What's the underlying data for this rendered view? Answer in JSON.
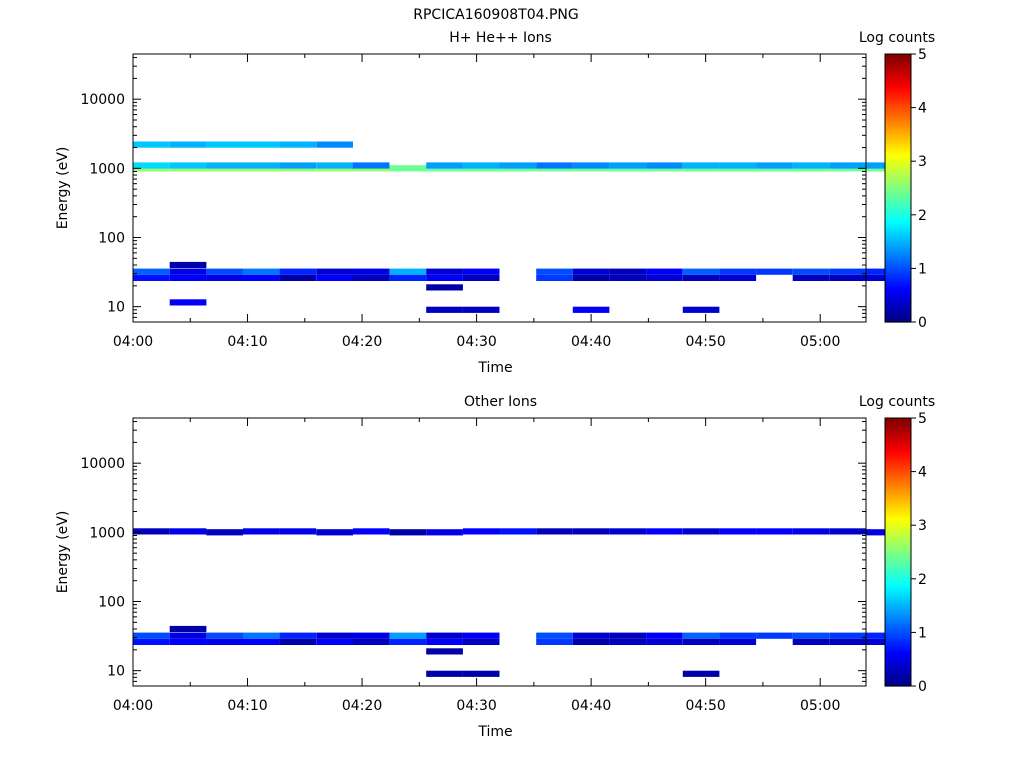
{
  "figure_title": "RPCICA160908T04.PNG",
  "colorbar": {
    "label": "Log counts",
    "ticks": [
      "0",
      "1",
      "2",
      "3",
      "4",
      "5"
    ],
    "range": [
      0,
      5
    ],
    "colormap": "jet"
  },
  "chart_data": [
    {
      "type": "heatmap",
      "title": "H+ He++ Ions",
      "xlabel": "Time",
      "ylabel": "Energy (eV)",
      "x_ticks": [
        "04:00",
        "04:10",
        "04:20",
        "04:30",
        "04:40",
        "04:50",
        "05:00"
      ],
      "y_ticks": [
        "10",
        "100",
        "1000",
        "10000"
      ],
      "y_scale": "log",
      "x_range_minutes": [
        0,
        64
      ],
      "y_range_eV": [
        6,
        45000
      ],
      "time_bin_minutes": 3.2,
      "value_unit": "log counts",
      "cells": [
        [
          0,
          1000,
          2.6
        ],
        [
          1,
          1000,
          2.6
        ],
        [
          2,
          1000,
          2.6
        ],
        [
          3,
          1000,
          2.6
        ],
        [
          4,
          1000,
          2.6
        ],
        [
          5,
          1000,
          2.6
        ],
        [
          6,
          1000,
          2.6
        ],
        [
          7,
          1000,
          2.4
        ],
        [
          8,
          1000,
          2.4
        ],
        [
          9,
          1000,
          2.4
        ],
        [
          10,
          1000,
          2.4
        ],
        [
          11,
          1000,
          2.4
        ],
        [
          12,
          1000,
          2.4
        ],
        [
          13,
          1000,
          2.4
        ],
        [
          14,
          1000,
          2.4
        ],
        [
          15,
          1000,
          2.4
        ],
        [
          16,
          1000,
          2.4
        ],
        [
          17,
          1000,
          2.4
        ],
        [
          18,
          1000,
          2.4
        ],
        [
          19,
          1000,
          2.4
        ],
        [
          20,
          1000,
          2.4
        ],
        [
          0,
          1100,
          1.7
        ],
        [
          1,
          1100,
          1.6
        ],
        [
          2,
          1100,
          1.5
        ],
        [
          3,
          1100,
          1.5
        ],
        [
          4,
          1100,
          1.4
        ],
        [
          5,
          1100,
          1.5
        ],
        [
          6,
          1100,
          1.2
        ],
        [
          8,
          1100,
          1.4
        ],
        [
          9,
          1100,
          1.5
        ],
        [
          10,
          1100,
          1.4
        ],
        [
          11,
          1100,
          1.2
        ],
        [
          12,
          1100,
          1.3
        ],
        [
          13,
          1100,
          1.4
        ],
        [
          14,
          1100,
          1.3
        ],
        [
          15,
          1100,
          1.5
        ],
        [
          16,
          1100,
          1.5
        ],
        [
          17,
          1100,
          1.4
        ],
        [
          18,
          1100,
          1.5
        ],
        [
          19,
          1100,
          1.4
        ],
        [
          20,
          1100,
          1.4
        ],
        [
          0,
          2200,
          1.6
        ],
        [
          1,
          2200,
          1.5
        ],
        [
          2,
          2200,
          1.6
        ],
        [
          3,
          2200,
          1.6
        ],
        [
          4,
          2200,
          1.5
        ],
        [
          5,
          2200,
          1.3
        ],
        [
          0,
          32,
          1.1
        ],
        [
          1,
          32,
          0.5
        ],
        [
          2,
          32,
          1.0
        ],
        [
          3,
          32,
          1.2
        ],
        [
          4,
          32,
          0.8
        ],
        [
          5,
          32,
          0.4
        ],
        [
          6,
          32,
          0.5
        ],
        [
          7,
          32,
          1.5
        ],
        [
          8,
          32,
          0.4
        ],
        [
          9,
          32,
          0.6
        ],
        [
          11,
          32,
          1.0
        ],
        [
          12,
          32,
          0.4
        ],
        [
          13,
          32,
          0.3
        ],
        [
          14,
          32,
          0.6
        ],
        [
          15,
          32,
          1.1
        ],
        [
          16,
          32,
          0.9
        ],
        [
          17,
          32,
          0.9
        ],
        [
          18,
          32,
          1.0
        ],
        [
          19,
          32,
          0.9
        ],
        [
          20,
          32,
          0.8
        ],
        [
          0,
          26,
          0.7
        ],
        [
          1,
          26,
          0.6
        ],
        [
          2,
          26,
          0.5
        ],
        [
          3,
          26,
          0.6
        ],
        [
          4,
          26,
          0.2
        ],
        [
          5,
          26,
          0.6
        ],
        [
          6,
          26,
          0.3
        ],
        [
          7,
          26,
          0.8
        ],
        [
          8,
          26,
          0.6
        ],
        [
          9,
          26,
          0.3
        ],
        [
          11,
          26,
          0.9
        ],
        [
          12,
          26,
          0.2
        ],
        [
          13,
          26,
          0.3
        ],
        [
          14,
          26,
          0.4
        ],
        [
          15,
          26,
          0.3
        ],
        [
          16,
          26,
          0.4
        ],
        [
          18,
          26,
          0.3
        ],
        [
          19,
          26,
          0.3
        ],
        [
          20,
          26,
          0.4
        ],
        [
          1,
          11.5,
          0.6
        ],
        [
          8,
          9,
          0.3
        ],
        [
          9,
          9,
          0.3
        ],
        [
          12,
          9,
          0.6
        ],
        [
          15,
          9,
          0.4
        ],
        [
          8,
          19,
          0.2
        ],
        [
          1,
          40,
          0.2
        ]
      ]
    },
    {
      "type": "heatmap",
      "title": "Other Ions",
      "xlabel": "Time",
      "ylabel": "Energy (eV)",
      "x_ticks": [
        "04:00",
        "04:10",
        "04:20",
        "04:30",
        "04:40",
        "04:50",
        "05:00"
      ],
      "y_ticks": [
        "10",
        "100",
        "1000",
        "10000"
      ],
      "y_scale": "log",
      "x_range_minutes": [
        0,
        64
      ],
      "y_range_eV": [
        6,
        45000
      ],
      "time_bin_minutes": 3.2,
      "value_unit": "log counts",
      "cells": [
        [
          0,
          1030,
          0.3
        ],
        [
          1,
          1030,
          0.5
        ],
        [
          2,
          1000,
          0.3
        ],
        [
          3,
          1030,
          0.5
        ],
        [
          4,
          1030,
          0.5
        ],
        [
          5,
          1000,
          0.4
        ],
        [
          6,
          1030,
          0.6
        ],
        [
          7,
          1000,
          0.2
        ],
        [
          8,
          1000,
          0.5
        ],
        [
          9,
          1030,
          0.6
        ],
        [
          10,
          1030,
          0.7
        ],
        [
          11,
          1030,
          0.3
        ],
        [
          12,
          1030,
          0.3
        ],
        [
          13,
          1030,
          0.4
        ],
        [
          14,
          1030,
          0.6
        ],
        [
          15,
          1030,
          0.4
        ],
        [
          16,
          1030,
          0.6
        ],
        [
          17,
          1030,
          0.6
        ],
        [
          18,
          1030,
          0.5
        ],
        [
          19,
          1030,
          0.4
        ],
        [
          20,
          1000,
          0.5
        ],
        [
          0,
          32,
          1.0
        ],
        [
          1,
          32,
          0.5
        ],
        [
          2,
          32,
          1.0
        ],
        [
          3,
          32,
          1.2
        ],
        [
          4,
          32,
          0.8
        ],
        [
          5,
          32,
          0.4
        ],
        [
          6,
          32,
          0.5
        ],
        [
          7,
          32,
          1.4
        ],
        [
          8,
          32,
          0.4
        ],
        [
          9,
          32,
          0.6
        ],
        [
          11,
          32,
          1.0
        ],
        [
          12,
          32,
          0.4
        ],
        [
          13,
          32,
          0.3
        ],
        [
          14,
          32,
          0.6
        ],
        [
          15,
          32,
          1.1
        ],
        [
          16,
          32,
          0.9
        ],
        [
          17,
          32,
          0.9
        ],
        [
          18,
          32,
          1.0
        ],
        [
          19,
          32,
          0.9
        ],
        [
          20,
          32,
          0.8
        ],
        [
          0,
          26,
          0.7
        ],
        [
          1,
          26,
          0.6
        ],
        [
          2,
          26,
          0.5
        ],
        [
          3,
          26,
          0.6
        ],
        [
          4,
          26,
          0.2
        ],
        [
          5,
          26,
          0.6
        ],
        [
          6,
          26,
          0.3
        ],
        [
          7,
          26,
          0.8
        ],
        [
          8,
          26,
          0.6
        ],
        [
          9,
          26,
          0.3
        ],
        [
          11,
          26,
          0.9
        ],
        [
          12,
          26,
          0.2
        ],
        [
          13,
          26,
          0.3
        ],
        [
          14,
          26,
          0.4
        ],
        [
          15,
          26,
          0.3
        ],
        [
          16,
          26,
          0.4
        ],
        [
          18,
          26,
          0.3
        ],
        [
          19,
          26,
          0.3
        ],
        [
          20,
          26,
          0.4
        ],
        [
          8,
          9,
          0.2
        ],
        [
          9,
          9,
          0.2
        ],
        [
          15,
          9,
          0.2
        ],
        [
          8,
          19,
          0.2
        ],
        [
          1,
          40,
          0.2
        ]
      ]
    }
  ]
}
